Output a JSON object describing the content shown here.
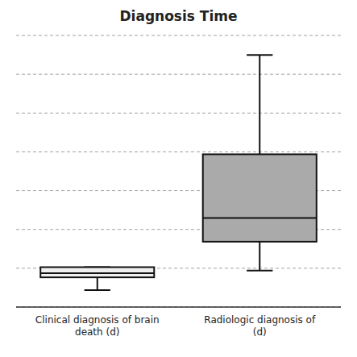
{
  "chart_data": {
    "type": "box",
    "title": "Diagnosis Time",
    "categories": [
      "Clinical diagnosis of brain\ndeath (d)",
      "Radiologic diagnosis of\n(d)"
    ],
    "values": [
      {
        "low": -0.15,
        "q1": 0.0,
        "median": 0.05,
        "q3": 0.12,
        "high": 0.12
      },
      {
        "low": 0.08,
        "q1": 0.42,
        "median": 0.7,
        "q3": 1.45,
        "high": 2.62
      }
    ],
    "colors": [
      "#efefef",
      "#aaaaaa"
    ],
    "ylim": [
      -0.35,
      2.85
    ],
    "yticks": [
      -0.35,
      0.10714285714285715,
      0.5642857142857143,
      1.0214285714285714,
      1.4785714285714286,
      1.9357142857142857,
      2.392857142857143,
      2.85
    ],
    "grid": true,
    "tick_labels": "x"
  }
}
